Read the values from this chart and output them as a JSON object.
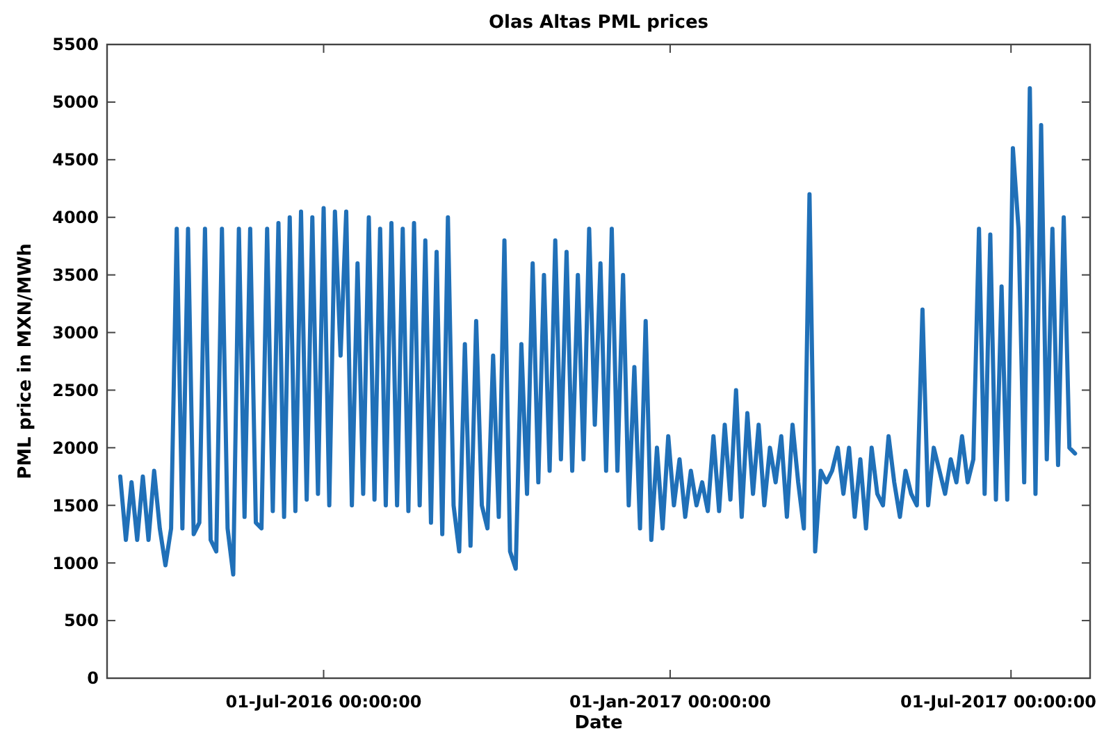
{
  "chart_data": {
    "type": "line",
    "title": "Olas Altas PML prices",
    "xlabel": "Date",
    "ylabel": "PML price in MXN/MWh",
    "xlim": [
      "2016-03-08",
      "2017-08-12"
    ],
    "xticks": [
      {
        "value": "2016-07-01",
        "label": "01-Jul-2016 00:00:00"
      },
      {
        "value": "2017-01-01",
        "label": "01-Jan-2017 00:00:00"
      },
      {
        "value": "2017-07-01",
        "label": "01-Jul-2017 00:00:00"
      }
    ],
    "ylim": [
      0,
      5500
    ],
    "yticks": [
      0,
      500,
      1000,
      1500,
      2000,
      2500,
      3000,
      3500,
      4000,
      4500,
      5000,
      5500
    ],
    "grid": false,
    "line_style": "solid",
    "series": [
      {
        "color": "#2070b8",
        "x": [
          "2016-03-15",
          "2016-03-18",
          "2016-03-21",
          "2016-03-24",
          "2016-03-27",
          "2016-03-30",
          "2016-04-02",
          "2016-04-05",
          "2016-04-08",
          "2016-04-11",
          "2016-04-14",
          "2016-04-17",
          "2016-04-20",
          "2016-04-23",
          "2016-04-26",
          "2016-04-29",
          "2016-05-02",
          "2016-05-05",
          "2016-05-08",
          "2016-05-11",
          "2016-05-14",
          "2016-05-17",
          "2016-05-20",
          "2016-05-23",
          "2016-05-26",
          "2016-05-29",
          "2016-06-01",
          "2016-06-04",
          "2016-06-07",
          "2016-06-10",
          "2016-06-13",
          "2016-06-16",
          "2016-06-19",
          "2016-06-22",
          "2016-06-25",
          "2016-06-28",
          "2016-07-01",
          "2016-07-04",
          "2016-07-07",
          "2016-07-10",
          "2016-07-13",
          "2016-07-16",
          "2016-07-19",
          "2016-07-22",
          "2016-07-25",
          "2016-07-28",
          "2016-07-31",
          "2016-08-03",
          "2016-08-06",
          "2016-08-09",
          "2016-08-12",
          "2016-08-15",
          "2016-08-18",
          "2016-08-21",
          "2016-08-24",
          "2016-08-27",
          "2016-08-30",
          "2016-09-02",
          "2016-09-05",
          "2016-09-08",
          "2016-09-11",
          "2016-09-14",
          "2016-09-17",
          "2016-09-20",
          "2016-09-23",
          "2016-09-26",
          "2016-09-29",
          "2016-10-02",
          "2016-10-05",
          "2016-10-08",
          "2016-10-11",
          "2016-10-14",
          "2016-10-17",
          "2016-10-20",
          "2016-10-23",
          "2016-10-26",
          "2016-10-29",
          "2016-11-01",
          "2016-11-04",
          "2016-11-07",
          "2016-11-10",
          "2016-11-13",
          "2016-11-16",
          "2016-11-19",
          "2016-11-22",
          "2016-11-25",
          "2016-11-28",
          "2016-12-01",
          "2016-12-04",
          "2016-12-07",
          "2016-12-10",
          "2016-12-13",
          "2016-12-16",
          "2016-12-19",
          "2016-12-22",
          "2016-12-25",
          "2016-12-28",
          "2016-12-31",
          "2017-01-03",
          "2017-01-06",
          "2017-01-09",
          "2017-01-12",
          "2017-01-15",
          "2017-01-18",
          "2017-01-21",
          "2017-01-24",
          "2017-01-27",
          "2017-01-30",
          "2017-02-02",
          "2017-02-05",
          "2017-02-08",
          "2017-02-11",
          "2017-02-14",
          "2017-02-17",
          "2017-02-20",
          "2017-02-23",
          "2017-02-26",
          "2017-03-01",
          "2017-03-04",
          "2017-03-07",
          "2017-03-10",
          "2017-03-13",
          "2017-03-16",
          "2017-03-19",
          "2017-03-22",
          "2017-03-25",
          "2017-03-28",
          "2017-03-31",
          "2017-04-03",
          "2017-04-06",
          "2017-04-09",
          "2017-04-12",
          "2017-04-15",
          "2017-04-18",
          "2017-04-21",
          "2017-04-24",
          "2017-04-27",
          "2017-04-30",
          "2017-05-03",
          "2017-05-06",
          "2017-05-09",
          "2017-05-12",
          "2017-05-15",
          "2017-05-18",
          "2017-05-21",
          "2017-05-24",
          "2017-05-27",
          "2017-05-30",
          "2017-06-02",
          "2017-06-05",
          "2017-06-08",
          "2017-06-11",
          "2017-06-14",
          "2017-06-17",
          "2017-06-20",
          "2017-06-23",
          "2017-06-26",
          "2017-06-29",
          "2017-07-02",
          "2017-07-05",
          "2017-07-08",
          "2017-07-11",
          "2017-07-14",
          "2017-07-17",
          "2017-07-20",
          "2017-07-23",
          "2017-07-26",
          "2017-07-29",
          "2017-08-01",
          "2017-08-04"
        ],
        "values": [
          1750,
          1200,
          1700,
          1200,
          1750,
          1200,
          1800,
          1300,
          980,
          1300,
          3900,
          1300,
          3900,
          1250,
          1350,
          3900,
          1200,
          1100,
          3900,
          1300,
          900,
          3900,
          1400,
          3900,
          1350,
          1300,
          3900,
          1450,
          3950,
          1400,
          4000,
          1450,
          4050,
          1550,
          4000,
          1600,
          4080,
          1500,
          4050,
          2800,
          4050,
          1500,
          3600,
          1600,
          4000,
          1550,
          3900,
          1500,
          3950,
          1500,
          3900,
          1450,
          3950,
          1500,
          3800,
          1350,
          3700,
          1250,
          4000,
          1500,
          1100,
          2900,
          1150,
          3100,
          1500,
          1300,
          2800,
          1400,
          3800,
          1100,
          950,
          2900,
          1600,
          3600,
          1700,
          3500,
          1800,
          3800,
          1900,
          3700,
          1800,
          3500,
          1900,
          3900,
          2200,
          3600,
          1800,
          3900,
          1800,
          3500,
          1500,
          2700,
          1300,
          3100,
          1200,
          2000,
          1300,
          2100,
          1500,
          1900,
          1400,
          1800,
          1500,
          1700,
          1450,
          2100,
          1450,
          2200,
          1550,
          2500,
          1400,
          2300,
          1600,
          2200,
          1500,
          2000,
          1700,
          2100,
          1400,
          2200,
          1700,
          1300,
          4200,
          1100,
          1800,
          1700,
          1800,
          2000,
          1600,
          2000,
          1400,
          1900,
          1300,
          2000,
          1600,
          1500,
          2100,
          1700,
          1400,
          1800,
          1600,
          1500,
          3200,
          1500,
          2000,
          1800,
          1600,
          1900,
          1700,
          2100,
          1700,
          1900,
          3900,
          1600,
          3850,
          1550,
          3400,
          1550,
          4600,
          3900,
          1700,
          5120,
          1600,
          4800,
          1900,
          3900,
          1850,
          4000,
          2000,
          1950
        ]
      }
    ]
  }
}
